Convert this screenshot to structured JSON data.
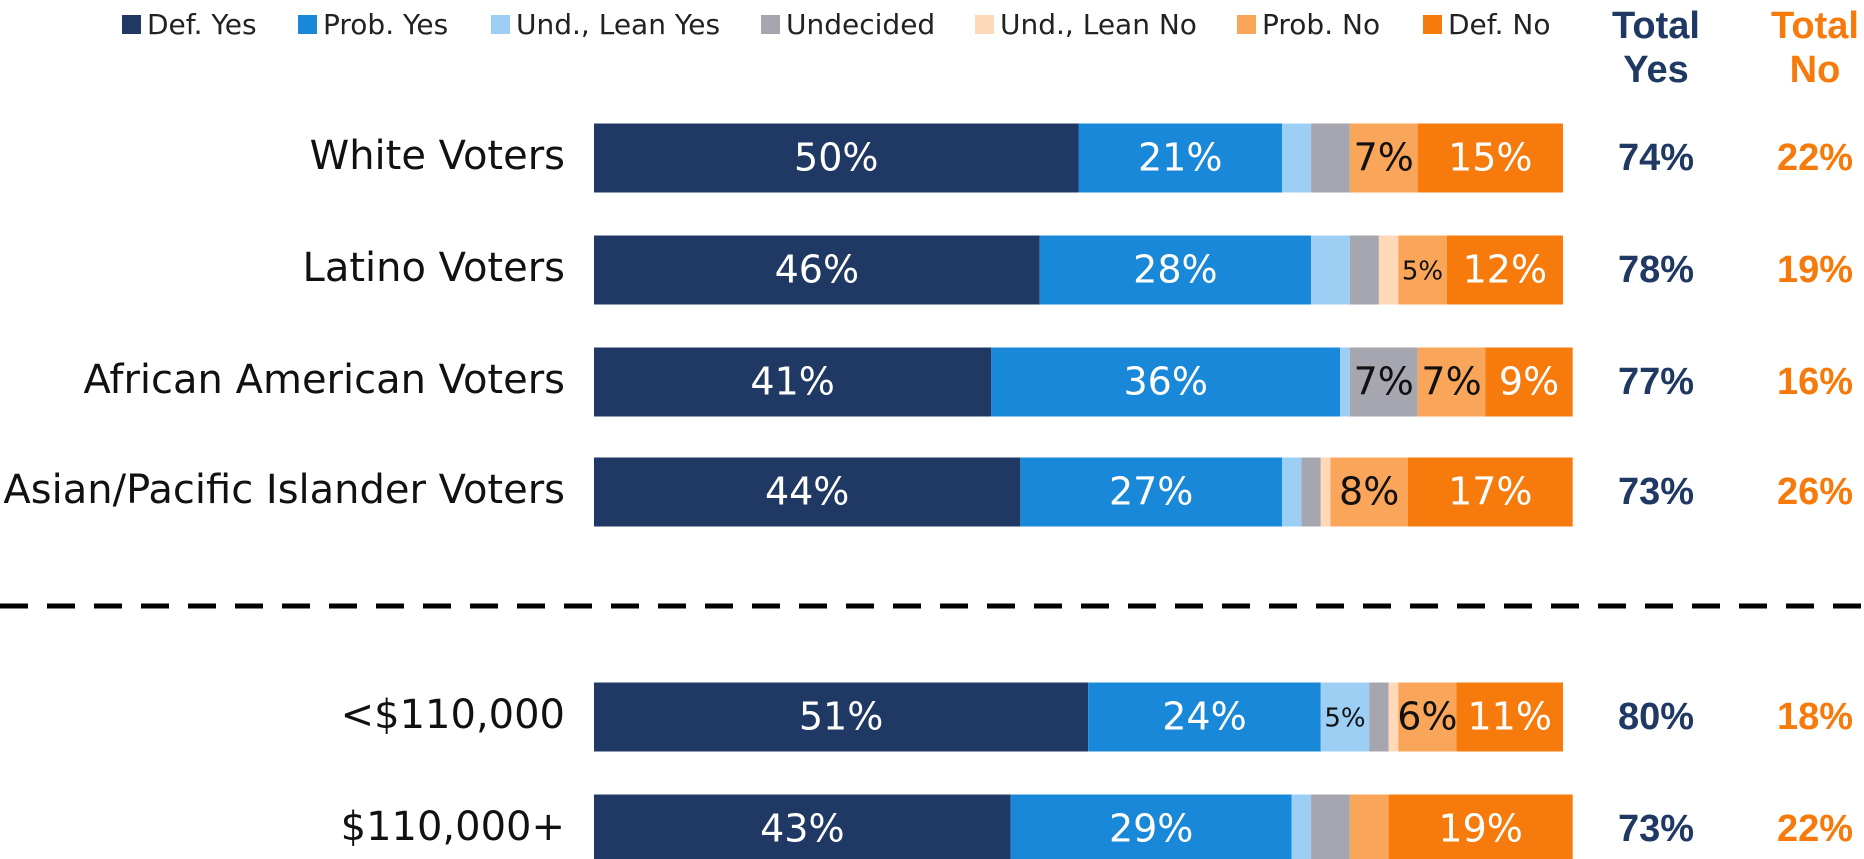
{
  "chart_data": {
    "type": "bar",
    "orientation": "horizontal",
    "stacked": true,
    "categories": [
      "White Voters",
      "Latino Voters",
      "African American Voters",
      "Asian/Pacific Islander Voters",
      "<$110,000",
      "$110,000+"
    ],
    "xlim": [
      0,
      100
    ],
    "series": [
      {
        "name": "Def. Yes",
        "color": "#1f3864",
        "values": [
          50,
          46,
          41,
          44,
          51,
          43
        ],
        "value_labels": [
          "50%",
          "46%",
          "41%",
          "44%",
          "51%",
          "43%"
        ]
      },
      {
        "name": "Prob. Yes",
        "color": "#1a88d8",
        "values": [
          21,
          28,
          36,
          27,
          24,
          29
        ],
        "value_labels": [
          "21%",
          "28%",
          "36%",
          "27%",
          "24%",
          "29%"
        ]
      },
      {
        "name": "Und., Lean Yes",
        "color": "#9dcff5",
        "values": [
          3,
          4,
          1,
          2,
          5,
          2
        ],
        "value_labels": [
          null,
          null,
          null,
          null,
          "5%",
          null
        ]
      },
      {
        "name": "Undecided",
        "color": "#a6a6b0",
        "values": [
          4,
          3,
          7,
          2,
          2,
          4
        ],
        "value_labels": [
          null,
          null,
          "7%",
          null,
          null,
          null
        ]
      },
      {
        "name": "Und., Lean No",
        "color": "#fdd9b9",
        "values": [
          0,
          2,
          0,
          1,
          1,
          0
        ],
        "value_labels": [
          null,
          null,
          null,
          null,
          null,
          null
        ]
      },
      {
        "name": "Prob. No",
        "color": "#f9a55a",
        "values": [
          7,
          5,
          7,
          8,
          6,
          4
        ],
        "value_labels": [
          "7%",
          "5%",
          "7%",
          "8%",
          "6%",
          null
        ]
      },
      {
        "name": "Def. No",
        "color": "#f77b0c",
        "values": [
          15,
          12,
          9,
          17,
          11,
          19
        ],
        "value_labels": [
          "15%",
          "12%",
          "9%",
          "17%",
          "11%",
          "19%"
        ]
      }
    ],
    "total_yes": {
      "title": "Total Yes",
      "color": "#1f3864",
      "values": [
        74,
        78,
        77,
        73,
        80,
        73
      ],
      "value_labels": [
        "74%",
        "78%",
        "77%",
        "73%",
        "80%",
        "73%"
      ]
    },
    "total_no": {
      "title": "Total No",
      "color": "#f77b0c",
      "values": [
        22,
        19,
        16,
        26,
        18,
        22
      ],
      "value_labels": [
        "22%",
        "19%",
        "16%",
        "26%",
        "18%",
        "22%"
      ]
    }
  }
}
